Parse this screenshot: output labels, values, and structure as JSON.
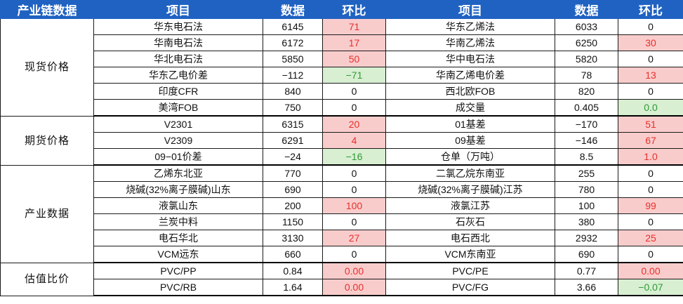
{
  "header": {
    "category": "产业链数据",
    "item_left": "项目",
    "value_left": "数据",
    "change_left": "环比",
    "item_right": "项目",
    "value_right": "数据",
    "change_right": "环比"
  },
  "colors": {
    "header_bg": "#1f62c2",
    "positive_bg": "#f9cccc",
    "positive_text": "#e8302a",
    "negative_bg": "#d8efd2",
    "negative_text": "#2f9a37"
  },
  "groups": [
    {
      "name": "现货价格",
      "rows": [
        {
          "li": "华东电石法",
          "lv": "6145",
          "lc": "71",
          "lt": "pos",
          "ri": "华东乙烯法",
          "rv": "6033",
          "rc": "0",
          "rt": ""
        },
        {
          "li": "华南电石法",
          "lv": "6172",
          "lc": "17",
          "lt": "pos",
          "ri": "华南乙烯法",
          "rv": "6250",
          "rc": "30",
          "rt": "pos"
        },
        {
          "li": "华北电石法",
          "lv": "5850",
          "lc": "50",
          "lt": "pos",
          "ri": "华中电石法",
          "rv": "5820",
          "rc": "0",
          "rt": ""
        },
        {
          "li": "华东乙电价差",
          "lv": "−112",
          "lc": "−71",
          "lt": "neg",
          "ri": "华南乙烯电价差",
          "rv": "78",
          "rc": "13",
          "rt": "pos"
        },
        {
          "li": "印度CFR",
          "lv": "840",
          "lc": "0",
          "lt": "",
          "ri": "西北欧FOB",
          "rv": "820",
          "rc": "0",
          "rt": ""
        },
        {
          "li": "美湾FOB",
          "lv": "750",
          "lc": "0",
          "lt": "",
          "ri": "成交量",
          "rv": "0.405",
          "rc": "0.0",
          "rt": "neg"
        }
      ]
    },
    {
      "name": "期货价格",
      "rows": [
        {
          "li": "V2301",
          "lv": "6315",
          "lc": "20",
          "lt": "pos",
          "ri": "01基差",
          "rv": "−170",
          "rc": "51",
          "rt": "pos"
        },
        {
          "li": "V2309",
          "lv": "6291",
          "lc": "4",
          "lt": "pos",
          "ri": "09基差",
          "rv": "−146",
          "rc": "67",
          "rt": "pos"
        },
        {
          "li": "09−01价差",
          "lv": "−24",
          "lc": "−16",
          "lt": "neg",
          "ri": "仓单（万吨）",
          "rv": "8.5",
          "rc": "1.0",
          "rt": "pos"
        }
      ]
    },
    {
      "name": "产业数据",
      "rows": [
        {
          "li": "乙烯东北亚",
          "lv": "770",
          "lc": "0",
          "lt": "",
          "ri": "二氯乙烷东南亚",
          "rv": "255",
          "rc": "0",
          "rt": ""
        },
        {
          "li": "烧碱(32%离子膜碱)山东",
          "lv": "690",
          "lc": "0",
          "lt": "",
          "ri": "烧碱(32%离子膜碱)江苏",
          "rv": "780",
          "rc": "0",
          "rt": ""
        },
        {
          "li": "液氯山东",
          "lv": "200",
          "lc": "100",
          "lt": "pos",
          "ri": "液氯江苏",
          "rv": "100",
          "rc": "99",
          "rt": "pos"
        },
        {
          "li": "兰炭中料",
          "lv": "1150",
          "lc": "0",
          "lt": "",
          "ri": "石灰石",
          "rv": "380",
          "rc": "0",
          "rt": ""
        },
        {
          "li": "电石华北",
          "lv": "3130",
          "lc": "27",
          "lt": "pos",
          "ri": "电石西北",
          "rv": "2932",
          "rc": "25",
          "rt": "pos"
        },
        {
          "li": "VCM远东",
          "lv": "660",
          "lc": "0",
          "lt": "",
          "ri": "VCM东南亚",
          "rv": "690",
          "rc": "0",
          "rt": ""
        }
      ]
    },
    {
      "name": "估值比价",
      "rows": [
        {
          "li": "PVC/PP",
          "lv": "0.84",
          "lc": "0.00",
          "lt": "pos",
          "ri": "PVC/PE",
          "rv": "0.77",
          "rc": "0.00",
          "rt": "pos"
        },
        {
          "li": "PVC/RB",
          "lv": "1.64",
          "lc": "0.00",
          "lt": "pos",
          "ri": "PVC/FG",
          "rv": "3.66",
          "rc": "−0.07",
          "rt": "neg"
        }
      ]
    }
  ]
}
